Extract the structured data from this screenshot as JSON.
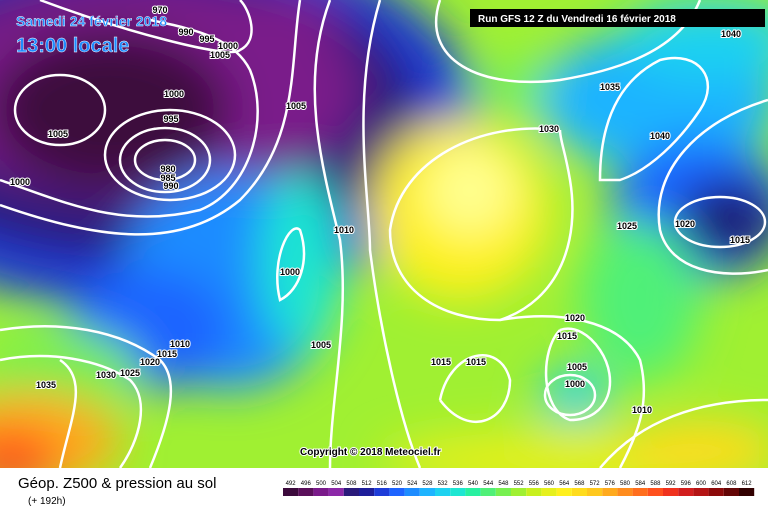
{
  "header": {
    "date": "Samedi 24 février 2018",
    "time": "13:00 locale",
    "run": "Run GFS 12 Z du Vendredi 16 février 2018"
  },
  "copyright": "Copyright © 2018 Meteociel.fr",
  "footer": {
    "title": "Géop. Z500 & pression au sol",
    "subtitle": "(+ 192h)"
  },
  "isobar_labels": [
    970,
    990,
    995,
    1000,
    1005,
    1000,
    995,
    1005,
    980,
    985,
    990,
    1000,
    1005,
    1010,
    1000,
    1005,
    1010,
    1015,
    1020,
    1025,
    1030,
    1035,
    1040,
    1035,
    1030,
    1040,
    1025,
    1020,
    1015,
    1020,
    1015,
    1015,
    1015,
    1005,
    1000,
    1010
  ],
  "scale": {
    "values": [
      492,
      496,
      500,
      504,
      508,
      512,
      516,
      520,
      524,
      528,
      532,
      536,
      540,
      544,
      548,
      552,
      556,
      560,
      564,
      568,
      572,
      576,
      580,
      584,
      588,
      592,
      596,
      600,
      604,
      608,
      612
    ],
    "colors": [
      "#3c0a3c",
      "#5a0f5a",
      "#7a1a8a",
      "#8c28a8",
      "#2a1a7a",
      "#1e1e9a",
      "#1e3cd8",
      "#1e64ff",
      "#1e8cff",
      "#1eb4ff",
      "#1ed2f0",
      "#1ee6d2",
      "#28f0a0",
      "#50f078",
      "#78f050",
      "#a0f032",
      "#c8f01e",
      "#e6f01e",
      "#fff01e",
      "#ffdc1e",
      "#ffc81e",
      "#ffaa1e",
      "#ff8c1e",
      "#ff6e1e",
      "#ff501e",
      "#f0321e",
      "#d21e1e",
      "#b41414",
      "#8c0a0a",
      "#640505",
      "#320000"
    ]
  }
}
